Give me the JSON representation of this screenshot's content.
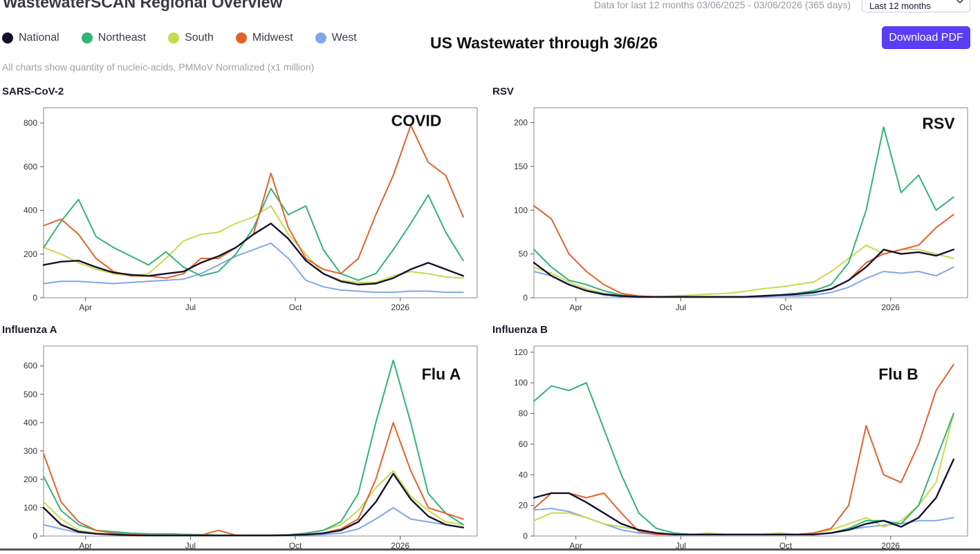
{
  "header": {
    "app_title": "WastewaterSCAN Regional Overview",
    "range_text": "Data for last 12 months 03/06/2025 - 03/06/2026 (365 days)",
    "range_select": "Last 12 months",
    "download_label": "Download PDF",
    "overlay_title": "US Wastewater through 3/6/26",
    "subtitle": "All charts show quantity of nucleic-acids, PMMoV Normalized (x1 million)"
  },
  "colors": {
    "National": "#14102e",
    "Northeast": "#2fb577",
    "South": "#c9d94e",
    "Midwest": "#e4622a",
    "West": "#82a6ec"
  },
  "legend": [
    {
      "label": "National",
      "color": "#14102e"
    },
    {
      "label": "Northeast",
      "color": "#2fb577"
    },
    {
      "label": "South",
      "color": "#c9d94e"
    },
    {
      "label": "Midwest",
      "color": "#e4622a"
    },
    {
      "label": "West",
      "color": "#82a6ec"
    }
  ],
  "chart_data": [
    {
      "type": "line",
      "name": "SARS-CoV-2",
      "annotation": "COVID",
      "x_ticks": [
        "Apr",
        "Jul",
        "Oct",
        "2026"
      ],
      "ylim": [
        0,
        870
      ],
      "y_ticks": [
        0,
        200,
        400,
        600,
        800
      ],
      "x": [
        0,
        0.5,
        1,
        1.5,
        2,
        2.5,
        3,
        3.5,
        4,
        4.5,
        5,
        5.5,
        6,
        6.5,
        7,
        7.5,
        8,
        8.5,
        9,
        9.5,
        10,
        10.5,
        11,
        11.5,
        12
      ],
      "series": [
        {
          "name": "National",
          "values": [
            150,
            165,
            170,
            140,
            115,
            105,
            100,
            110,
            120,
            160,
            190,
            230,
            290,
            340,
            270,
            170,
            110,
            75,
            60,
            65,
            90,
            130,
            160,
            130,
            100
          ]
        },
        {
          "name": "Northeast",
          "values": [
            230,
            350,
            450,
            280,
            230,
            190,
            150,
            210,
            140,
            100,
            120,
            200,
            320,
            500,
            380,
            420,
            220,
            110,
            80,
            110,
            220,
            340,
            470,
            300,
            170
          ]
        },
        {
          "name": "South",
          "values": [
            230,
            200,
            160,
            130,
            110,
            100,
            110,
            180,
            260,
            290,
            300,
            340,
            370,
            420,
            290,
            200,
            110,
            80,
            70,
            70,
            100,
            120,
            110,
            95,
            90
          ]
        },
        {
          "name": "Midwest",
          "values": [
            330,
            360,
            290,
            180,
            120,
            100,
            100,
            90,
            110,
            180,
            180,
            230,
            290,
            570,
            320,
            180,
            130,
            110,
            180,
            380,
            560,
            790,
            620,
            560,
            370
          ]
        },
        {
          "name": "West",
          "values": [
            65,
            75,
            75,
            70,
            65,
            70,
            75,
            80,
            85,
            110,
            150,
            190,
            220,
            250,
            180,
            80,
            50,
            35,
            30,
            25,
            25,
            30,
            30,
            25,
            25
          ]
        }
      ]
    },
    {
      "type": "line",
      "name": "RSV",
      "annotation": "RSV",
      "x_ticks": [
        "Apr",
        "Jul",
        "Oct",
        "2026"
      ],
      "ylim": [
        0,
        217
      ],
      "y_ticks": [
        0,
        50,
        100,
        150,
        200
      ],
      "x": [
        0,
        0.5,
        1,
        1.5,
        2,
        2.5,
        3,
        3.5,
        4,
        4.5,
        5,
        5.5,
        6,
        6.5,
        7,
        7.5,
        8,
        8.5,
        9,
        9.5,
        10,
        10.5,
        11,
        11.5,
        12
      ],
      "series": [
        {
          "name": "National",
          "values": [
            40,
            25,
            15,
            8,
            4,
            2,
            1,
            1,
            1,
            1,
            1,
            1,
            1,
            2,
            3,
            4,
            6,
            10,
            20,
            35,
            55,
            50,
            52,
            48,
            55
          ]
        },
        {
          "name": "Northeast",
          "values": [
            55,
            35,
            20,
            15,
            8,
            3,
            1,
            1,
            1,
            1,
            1,
            1,
            1,
            2,
            3,
            5,
            8,
            15,
            40,
            100,
            195,
            120,
            140,
            100,
            115
          ]
        },
        {
          "name": "South",
          "values": [
            35,
            28,
            18,
            10,
            5,
            2,
            1,
            1,
            2,
            3,
            4,
            5,
            7,
            10,
            12,
            15,
            18,
            30,
            45,
            60,
            50,
            55,
            55,
            50,
            45
          ]
        },
        {
          "name": "Midwest",
          "values": [
            105,
            90,
            50,
            30,
            15,
            5,
            2,
            1,
            1,
            1,
            1,
            1,
            1,
            2,
            3,
            4,
            6,
            10,
            20,
            40,
            50,
            55,
            60,
            80,
            95
          ]
        },
        {
          "name": "West",
          "values": [
            30,
            25,
            15,
            8,
            3,
            1,
            1,
            1,
            1,
            1,
            1,
            1,
            1,
            1,
            2,
            2,
            3,
            6,
            12,
            22,
            30,
            28,
            30,
            25,
            35
          ]
        }
      ]
    },
    {
      "type": "line",
      "name": "Influenza A",
      "annotation": "Flu A",
      "x_ticks": [
        "Apr",
        "Jul",
        "Oct",
        "2026"
      ],
      "ylim": [
        0,
        670
      ],
      "y_ticks": [
        0,
        100,
        200,
        300,
        400,
        500,
        600
      ],
      "x": [
        0,
        0.5,
        1,
        1.5,
        2,
        2.5,
        3,
        3.5,
        4,
        4.5,
        5,
        5.5,
        6,
        6.5,
        7,
        7.5,
        8,
        8.5,
        9,
        9.5,
        10,
        10.5,
        11,
        11.5,
        12
      ],
      "series": [
        {
          "name": "National",
          "values": [
            100,
            40,
            15,
            8,
            5,
            3,
            2,
            2,
            2,
            2,
            2,
            2,
            2,
            2,
            3,
            5,
            10,
            20,
            50,
            120,
            220,
            130,
            70,
            40,
            30
          ]
        },
        {
          "name": "Northeast",
          "values": [
            210,
            90,
            40,
            20,
            15,
            10,
            8,
            8,
            6,
            5,
            3,
            3,
            3,
            3,
            4,
            10,
            20,
            50,
            150,
            400,
            620,
            400,
            150,
            80,
            40
          ]
        },
        {
          "name": "South",
          "values": [
            120,
            60,
            20,
            10,
            6,
            4,
            3,
            3,
            3,
            3,
            3,
            3,
            3,
            3,
            5,
            10,
            20,
            40,
            90,
            170,
            230,
            140,
            90,
            50,
            40
          ]
        },
        {
          "name": "Midwest",
          "values": [
            290,
            120,
            50,
            20,
            10,
            5,
            3,
            3,
            3,
            3,
            20,
            3,
            3,
            3,
            3,
            5,
            10,
            25,
            60,
            200,
            400,
            230,
            100,
            80,
            60
          ]
        },
        {
          "name": "West",
          "values": [
            40,
            25,
            12,
            8,
            5,
            3,
            2,
            2,
            2,
            2,
            2,
            2,
            2,
            2,
            2,
            3,
            5,
            10,
            25,
            60,
            100,
            60,
            50,
            40,
            30
          ]
        }
      ]
    },
    {
      "type": "line",
      "name": "Influenza B",
      "annotation": "Flu B",
      "x_ticks": [
        "Apr",
        "Jul",
        "Oct",
        "2026"
      ],
      "ylim": [
        0,
        124
      ],
      "y_ticks": [
        0,
        20,
        40,
        60,
        80,
        100,
        120
      ],
      "x": [
        0,
        0.5,
        1,
        1.5,
        2,
        2.5,
        3,
        3.5,
        4,
        4.5,
        5,
        5.5,
        6,
        6.5,
        7,
        7.5,
        8,
        8.5,
        9,
        9.5,
        10,
        10.5,
        11,
        11.5,
        12
      ],
      "series": [
        {
          "name": "National",
          "values": [
            25,
            28,
            28,
            22,
            15,
            8,
            4,
            2,
            1,
            1,
            1,
            1,
            1,
            1,
            1,
            1,
            1,
            2,
            4,
            8,
            10,
            6,
            12,
            25,
            50
          ]
        },
        {
          "name": "Northeast",
          "values": [
            88,
            98,
            95,
            100,
            70,
            40,
            15,
            5,
            2,
            1,
            1,
            1,
            1,
            1,
            1,
            1,
            1,
            2,
            5,
            10,
            10,
            8,
            20,
            50,
            80
          ]
        },
        {
          "name": "South",
          "values": [
            10,
            15,
            15,
            12,
            8,
            6,
            4,
            2,
            1,
            1,
            2,
            1,
            1,
            1,
            2,
            1,
            2,
            4,
            8,
            12,
            6,
            10,
            20,
            35,
            80
          ]
        },
        {
          "name": "Midwest",
          "values": [
            18,
            28,
            28,
            25,
            28,
            15,
            3,
            1,
            1,
            1,
            1,
            1,
            1,
            1,
            1,
            1,
            2,
            5,
            20,
            72,
            40,
            35,
            60,
            95,
            112
          ]
        },
        {
          "name": "West",
          "values": [
            17,
            18,
            16,
            12,
            8,
            4,
            2,
            1,
            1,
            1,
            1,
            1,
            1,
            1,
            1,
            1,
            1,
            2,
            4,
            6,
            7,
            8,
            10,
            10,
            12
          ]
        }
      ]
    }
  ]
}
